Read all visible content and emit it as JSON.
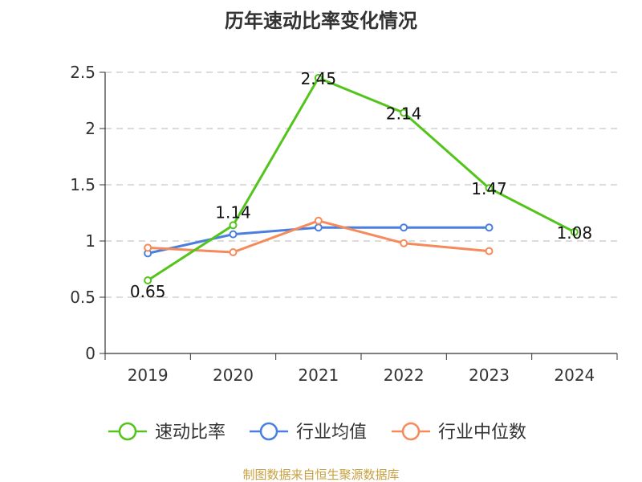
{
  "chart_data": {
    "type": "line",
    "title": "历年速动比率变化情况",
    "categories": [
      "2019",
      "2020",
      "2021",
      "2022",
      "2023",
      "2024"
    ],
    "ylim": [
      0,
      2.5
    ],
    "yticks": [
      "0",
      "0.5",
      "1",
      "1.5",
      "2",
      "2.5"
    ],
    "grid": true,
    "legend_position": "bottom",
    "series": [
      {
        "name": "速动比率",
        "color": "#52c41a",
        "values": [
          0.65,
          1.14,
          2.45,
          2.14,
          1.47,
          1.08
        ],
        "labels": [
          "0.65",
          "1.14",
          "2.45",
          "2.14",
          "1.47",
          "1.08"
        ]
      },
      {
        "name": "行业均值",
        "color": "#4a7fe0",
        "values": [
          0.89,
          1.06,
          1.12,
          1.12,
          1.12,
          null
        ]
      },
      {
        "name": "行业中位数",
        "color": "#f58a5b",
        "values": [
          0.94,
          0.9,
          1.18,
          0.98,
          0.91,
          null
        ]
      }
    ],
    "source": "制图数据来自恒生聚源数据库",
    "source_color": "#c8a040"
  }
}
